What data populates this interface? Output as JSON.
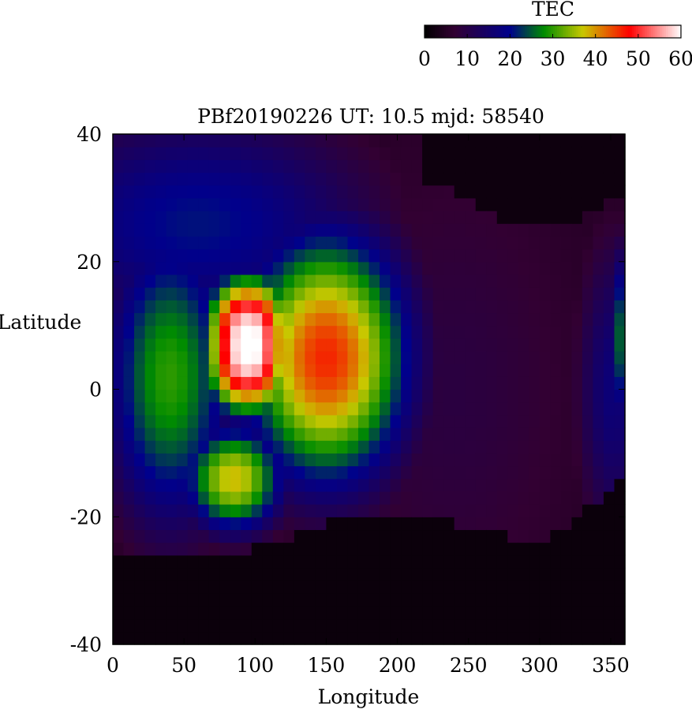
{
  "chart_data": {
    "type": "heatmap",
    "title": "PBf20190226  UT: 10.5  mjd: 58540",
    "xlabel": "Longitude",
    "ylabel": "Latitude",
    "xlim": [
      0,
      360
    ],
    "ylim": [
      -40,
      40
    ],
    "x_ticks": [
      0,
      50,
      100,
      150,
      200,
      250,
      300,
      350
    ],
    "y_ticks": [
      -40,
      -20,
      0,
      20,
      40
    ],
    "grid": false,
    "grid_resolution": {
      "lon_step": 7.5,
      "lat_step": 2
    },
    "colorbar": {
      "label": "TEC",
      "range": [
        0,
        60
      ],
      "ticks": [
        0,
        10,
        20,
        30,
        40,
        50,
        60
      ],
      "placement": "top-right",
      "colors": [
        "#000000",
        "#320032",
        "#00008c",
        "#008c00",
        "#c8c800",
        "#ff0000",
        "#ffffff"
      ],
      "color_stops": [
        0,
        7,
        20,
        28,
        37,
        48,
        60
      ]
    },
    "features": [
      {
        "name": "peak",
        "lon": 95,
        "lat": 7,
        "tec": 62
      },
      {
        "name": "south-crest",
        "lon": 95,
        "lat": -12,
        "tec": 40
      }
    ]
  }
}
